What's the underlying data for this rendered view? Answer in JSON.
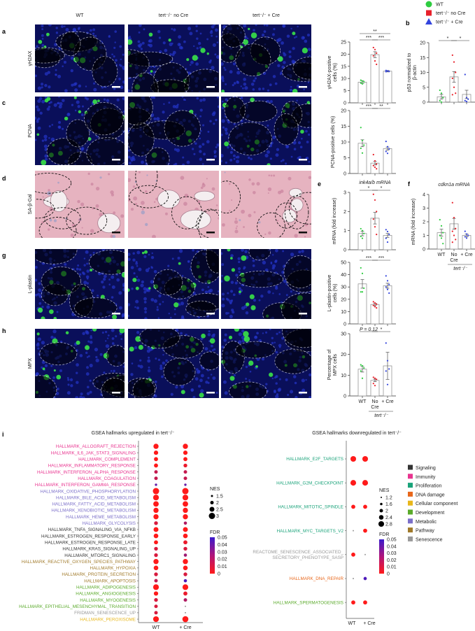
{
  "colors": {
    "WT": "#2ecc40",
    "noCre": "#e8202a",
    "plusCre": "#3344dd",
    "xlabel_plusCre": "#3a8ee0"
  },
  "legend": [
    {
      "label": "WT",
      "shape": "circle",
      "color": "#2ecc40"
    },
    {
      "label": "tert⁻/⁻ no Cre",
      "shape": "square",
      "color": "#e8202a"
    },
    {
      "label": "tert⁻/⁻ + Cre",
      "shape": "triangle",
      "color": "#3344dd"
    }
  ],
  "column_headers": [
    "WT",
    "tert⁻/⁻ no Cre",
    "tert⁻/⁻ + Cre"
  ],
  "micro_rows": [
    {
      "panel": "a",
      "stain": "γH2AX",
      "stain_color": "#2ecc40",
      "type": "fluor"
    },
    {
      "panel": "c",
      "stain": "PCNA",
      "stain_color": "#2ecc40",
      "type": "fluor"
    },
    {
      "panel": "d",
      "stain": "SA-β-Gal",
      "stain_color": "#3a8ee0",
      "type": "histo"
    },
    {
      "panel": "g",
      "stain": "L-plastin",
      "stain_color": "#2ecc40",
      "type": "fluor"
    },
    {
      "panel": "h",
      "stain": "MPX",
      "stain_color": "#2ecc40",
      "type": "fluor"
    }
  ],
  "chart_data": [
    {
      "panel": "a",
      "type": "bar",
      "ylabel": [
        "γH2AX-positive",
        "cells (%)"
      ],
      "ylim": [
        0,
        25
      ],
      "yticks": [
        0,
        5,
        10,
        15,
        20,
        25
      ],
      "categories": [
        "WT",
        "tert⁻/⁻ no Cre",
        "tert⁻/⁻ + Cre"
      ],
      "means": [
        8.5,
        19.8,
        13.0
      ],
      "sem": [
        0.6,
        1.2,
        0.3
      ],
      "points": [
        [
          9.3,
          9.0,
          8.6,
          8.2,
          7.8
        ],
        [
          22.7,
          21.9,
          20.4,
          19.3,
          17.2,
          15.8
        ],
        [
          13.3,
          13.1,
          12.9,
          12.8
        ]
      ],
      "significance": [
        {
          "pair": [
            0,
            2
          ],
          "label": "**",
          "level": 1
        },
        {
          "pair": [
            0,
            1
          ],
          "label": "***",
          "level": 0
        },
        {
          "pair": [
            1,
            2
          ],
          "label": "***",
          "level": 0
        }
      ]
    },
    {
      "panel": "b",
      "type": "bar",
      "ylabel": [
        "p53 normalized to",
        "β-actin"
      ],
      "ylim": [
        0,
        20
      ],
      "yticks": [
        0,
        5,
        10,
        15,
        20
      ],
      "categories": [
        "WT",
        "tert⁻/⁻ no Cre",
        "tert⁻/⁻ + Cre"
      ],
      "means": [
        1.8,
        8.5,
        2.6
      ],
      "sem": [
        0.8,
        1.8,
        1.4
      ],
      "points": [
        [
          4.0,
          3.0,
          1.5,
          0.5,
          0.0
        ],
        [
          15.8,
          13.5,
          10.0,
          8.0,
          5.0,
          3.0,
          2.5
        ],
        [
          9.3,
          1.5,
          1.0,
          0.5,
          0.2
        ]
      ],
      "significance": [
        {
          "pair": [
            0,
            1
          ],
          "label": "*",
          "level": 0
        },
        {
          "pair": [
            1,
            2
          ],
          "label": "*",
          "level": 0
        }
      ]
    },
    {
      "panel": "c",
      "type": "bar",
      "ylabel": [
        "PCNA-positive cells (%)"
      ],
      "ylim": [
        0,
        20
      ],
      "yticks": [
        0,
        5,
        10,
        15,
        20
      ],
      "categories": [
        "WT",
        "tert⁻/⁻ no Cre",
        "tert⁻/⁻ + Cre"
      ],
      "means": [
        9.6,
        3.3,
        7.9
      ],
      "sem": [
        1.1,
        0.6,
        0.5
      ],
      "points": [
        [
          14.6,
          10.5,
          9.0,
          8.0,
          6.5
        ],
        [
          6.0,
          4.0,
          3.0,
          2.5,
          2.0,
          1.5
        ],
        [
          10.2,
          8.5,
          7.8,
          7.0,
          6.4
        ]
      ],
      "significance": [
        {
          "pair": [
            0,
            1
          ],
          "label": "***",
          "level": 0
        },
        {
          "pair": [
            1,
            2
          ],
          "label": "**",
          "level": 0
        }
      ]
    },
    {
      "panel": "e",
      "type": "bar",
      "title": "ink4a/b mRNA",
      "ylabel": [
        "mRNA (fold increase)"
      ],
      "ylim": [
        0,
        3
      ],
      "yticks": [
        0,
        1,
        2,
        3
      ],
      "categories": [
        "WT",
        "tert⁻/⁻ no Cre",
        "tert⁻/⁻ + Cre"
      ],
      "means": [
        0.85,
        1.65,
        0.75
      ],
      "sem": [
        0.12,
        0.3,
        0.1
      ],
      "points": [
        [
          1.1,
          1.0,
          0.85,
          0.7,
          0.6
        ],
        [
          2.9,
          2.6,
          2.0,
          1.6,
          1.2,
          0.8
        ],
        [
          1.05,
          0.95,
          0.8,
          0.6,
          0.4
        ]
      ],
      "significance": [
        {
          "pair": [
            0,
            1
          ],
          "label": "*",
          "level": 0
        },
        {
          "pair": [
            1,
            2
          ],
          "label": "*",
          "level": 0
        }
      ]
    },
    {
      "panel": "f",
      "type": "bar",
      "title": "cdkn1a mRNA",
      "ylabel": [
        "mRNA (fold increase)"
      ],
      "ylim": [
        0,
        4
      ],
      "yticks": [
        0,
        1,
        2,
        3,
        4
      ],
      "categories": [
        "WT",
        "tert⁻/⁻ no Cre",
        "tert⁻/⁻ + Cre"
      ],
      "means": [
        1.2,
        1.85,
        1.0
      ],
      "sem": [
        0.25,
        0.4,
        0.1
      ],
      "points": [
        [
          2.15,
          1.7,
          1.2,
          1.0,
          0.8,
          0.4
        ],
        [
          3.4,
          2.3,
          1.5,
          1.3,
          1.0,
          0.7,
          0.5
        ],
        [
          1.3,
          1.1,
          1.0,
          0.9,
          0.8
        ]
      ],
      "significance": [],
      "xlabels": [
        "WT",
        "No",
        "Cre",
        "+ Cre"
      ],
      "group_label": "tert⁻/⁻"
    },
    {
      "panel": "g",
      "type": "bar",
      "ylabel": [
        "L-plastin-positive",
        "cells (%)"
      ],
      "ylim": [
        0,
        50
      ],
      "yticks": [
        0,
        10,
        20,
        30,
        40,
        50
      ],
      "categories": [
        "WT",
        "tert⁻/⁻ no Cre",
        "tert⁻/⁻ + Cre"
      ],
      "means": [
        32.5,
        15.8,
        31.0
      ],
      "sem": [
        3.5,
        1.0,
        2.0
      ],
      "points": [
        [
          45.5,
          41.0,
          29.0,
          26.0,
          26.0
        ],
        [
          18.0,
          17.0,
          16.0,
          15.0,
          14.0,
          13.0
        ],
        [
          39.0,
          35.0,
          32.0,
          30.0,
          28.0,
          25.0
        ]
      ],
      "significance": [
        {
          "pair": [
            0,
            1
          ],
          "label": "***",
          "level": 0
        },
        {
          "pair": [
            1,
            2
          ],
          "label": "***",
          "level": 0
        }
      ]
    },
    {
      "panel": "h",
      "type": "bar",
      "ylabel": [
        "Percentage of",
        "MPX cells"
      ],
      "ylim": [
        0,
        30
      ],
      "yticks": [
        0,
        10,
        20,
        30
      ],
      "categories": [
        "WT",
        "tert⁻/⁻ no Cre",
        "tert⁻/⁻ + Cre"
      ],
      "means": [
        12.9,
        7.5,
        14.5
      ],
      "sem": [
        1.4,
        0.6,
        6.5
      ],
      "points": [
        [
          15.0,
          14.5,
          13.5,
          12.0,
          8.5
        ],
        [
          9.0,
          8.5,
          8.0,
          6.0,
          5.0
        ],
        [
          25.5,
          17.0,
          13.0,
          12.0,
          5.5
        ]
      ],
      "significance": [
        {
          "pair": [
            0,
            1
          ],
          "label": "P = 0.12",
          "level": 0
        },
        {
          "pair": [
            1,
            2
          ],
          "label": "*",
          "level": 0
        }
      ],
      "xlabels": [
        "WT",
        "No",
        "Cre",
        "+ Cre"
      ],
      "group_label": "tert⁻/⁻"
    },
    {
      "panel": "i-up",
      "type": "scatter",
      "title": "GSEA hallmarks upregulated in tert⁻/⁻",
      "x": [
        "WT",
        "+ Cre"
      ],
      "size_legend": {
        "title": "NES",
        "values": [
          1.5,
          2.0,
          2.5,
          3.0
        ]
      },
      "color_legend": {
        "title": "FDR",
        "ticks": [
          0,
          0.01,
          0.02,
          0.03,
          0.04,
          0.05
        ],
        "range": [
          0,
          0.05
        ],
        "low": "#ff1a1a",
        "high": "#3a1acc"
      },
      "rows": [
        {
          "label": "HALLMARK_ALLOGRAFT_REJECTION",
          "cat": "Immunity",
          "wt": [
            2.6,
            0
          ],
          "cre": [
            2.6,
            0
          ]
        },
        {
          "label": "HALLMARK_IL6_JAK_STAT3_SIGNALING",
          "cat": "Immunity",
          "wt": [
            2.3,
            0
          ],
          "cre": [
            2.3,
            0
          ]
        },
        {
          "label": "HALLMARK_COMPLEMENT",
          "cat": "Immunity",
          "wt": [
            2.2,
            0
          ],
          "cre": [
            2.2,
            0
          ]
        },
        {
          "label": "HALLMARK_INFLAMMATORY_RESPONSE",
          "cat": "Immunity",
          "wt": [
            2.2,
            0
          ],
          "cre": [
            2.1,
            0.005
          ]
        },
        {
          "label": "HALLMARK_INTERFERON_ALPHA_RESPONSE",
          "cat": "Immunity",
          "wt": [
            2.0,
            0.015
          ],
          "cre": [
            2.0,
            0.015
          ]
        },
        {
          "label": "HALLMARK_COAGULATION",
          "cat": "Immunity",
          "wt": [
            2.0,
            0.015
          ],
          "cre": [
            2.0,
            0.015
          ]
        },
        {
          "label": "HALLMARK_INTERFERON_GAMMA_RESPONSE",
          "cat": "Immunity",
          "wt": [
            1.6,
            0.04
          ],
          "cre": [
            1.6,
            0.04
          ]
        },
        {
          "label": "HALLMARK_OXIDATIVE_PHOSPHORYLATION",
          "cat": "Metabolic",
          "wt": [
            3.0,
            0
          ],
          "cre": [
            3.0,
            0
          ]
        },
        {
          "label": "HALLMARK_BILE_ACID_METABOLISM",
          "cat": "Metabolic",
          "wt": [
            2.8,
            0
          ],
          "cre": [
            2.8,
            0
          ]
        },
        {
          "label": "HALLMARK_FATTY_ACID_METABOLISM",
          "cat": "Metabolic",
          "wt": [
            2.7,
            0
          ],
          "cre": [
            2.7,
            0
          ]
        },
        {
          "label": "HALLMARK_XENOBIOTIC_METABOLISM",
          "cat": "Metabolic",
          "wt": [
            2.6,
            0
          ],
          "cre": [
            2.6,
            0
          ]
        },
        {
          "label": "HALLMARK_HEME_METABOLISM",
          "cat": "Metabolic",
          "wt": [
            2.6,
            0
          ],
          "cre": [
            2.6,
            0
          ]
        },
        {
          "label": "HALLMARK_GLYCOLYSIS",
          "cat": "Metabolic",
          "wt": [
            2.1,
            0.01
          ],
          "cre": [
            1.9,
            0.02
          ]
        },
        {
          "label": "HALLMARK_TNFA_SIGNALING_VIA_NFKB",
          "cat": "Signaling",
          "wt": [
            2.5,
            0
          ],
          "cre": [
            2.5,
            0
          ]
        },
        {
          "label": "HALLMARK_ESTROGEN_RESPONSE_EARLY",
          "cat": "Signaling",
          "wt": [
            2.4,
            0
          ],
          "cre": [
            2.4,
            0
          ]
        },
        {
          "label": "HALLMARK_ESTROGEN_RESPONSE_LATE",
          "cat": "Signaling",
          "wt": [
            2.2,
            0
          ],
          "cre": [
            2.2,
            0.005
          ]
        },
        {
          "label": "HALLMARK_KRAS_SIGNALING_UP",
          "cat": "Signaling",
          "wt": [
            2.1,
            0.01
          ],
          "cre": [
            2.1,
            0.01
          ]
        },
        {
          "label": "HALLMARK_MTORC1_SIGNALING",
          "cat": "Signaling",
          "wt": [
            2.1,
            0.01
          ],
          "cre": [
            1.9,
            0.025
          ]
        },
        {
          "label": "HALLMARK_REACTIVE_OXYGEN_SPECIES_PATHWAY",
          "cat": "Pathway",
          "wt": [
            2.6,
            0
          ],
          "cre": [
            2.6,
            0
          ]
        },
        {
          "label": "HALLMARK_HYPOXIA",
          "cat": "Pathway",
          "wt": [
            2.4,
            0
          ],
          "cre": [
            2.4,
            0
          ]
        },
        {
          "label": "HALLMARK_PROTEIN_SECRETION",
          "cat": "Pathway",
          "wt": [
            2.1,
            0.01
          ],
          "cre": [
            2.1,
            0.01
          ]
        },
        {
          "label": "HALLMARK_APOPTOSIS",
          "cat": "Pathway",
          "wt": [
            2.0,
            0.015
          ],
          "cre": [
            1.9,
            0.045
          ]
        },
        {
          "label": "HALLMARK_ADIPOGENESIS",
          "cat": "Development",
          "wt": [
            2.8,
            0
          ],
          "cre": [
            2.8,
            0
          ]
        },
        {
          "label": "HALLMARK_ANGIOGENESIS",
          "cat": "Development",
          "wt": [
            2.3,
            0
          ],
          "cre": [
            2.2,
            0.005
          ]
        },
        {
          "label": "HALLMARK_MYOGENESIS",
          "cat": "Development",
          "wt": [
            2.1,
            0.01
          ],
          "cre": [
            2.0,
            0.02
          ]
        },
        {
          "label": "HALLMARK_EPITHELIAL_MESENCHYMAL_TRANSITION",
          "cat": "Development",
          "wt": [
            2.0,
            0.01
          ],
          "cre": null
        },
        {
          "label": "FRIDMAN_SENESCENCE_UP",
          "cat": "Senescence",
          "wt": [
            2.0,
            0.01
          ],
          "cre": null
        },
        {
          "label": "HALLMARK_PEROXISOME",
          "cat": "Cellular component",
          "wt": [
            2.8,
            0
          ],
          "cre": [
            2.9,
            0
          ]
        }
      ]
    },
    {
      "panel": "i-down",
      "type": "scatter",
      "title": "GSEA hallmarks downregulated in tert⁻/⁻",
      "x": [
        "WT",
        "+ Cre"
      ],
      "size_legend": {
        "title": "NES",
        "values": [
          1.2,
          1.6,
          2.0,
          2.4,
          2.8
        ]
      },
      "color_legend": {
        "title": "FDR",
        "ticks": [
          0,
          0.01,
          0.02,
          0.03,
          0.04,
          0.05
        ],
        "range": [
          0,
          0.05
        ],
        "low": "#ff1a1a",
        "high": "#3a1acc"
      },
      "rows": [
        {
          "label": "HALLMARK_E2F_TARGETS",
          "cat": "Proliferation",
          "wt": [
            2.8,
            0
          ],
          "cre": [
            2.8,
            0
          ]
        },
        {
          "label": "HALLMARK_G2M_CHECKPOINT",
          "cat": "Proliferation",
          "wt": [
            2.8,
            0
          ],
          "cre": [
            2.8,
            0
          ]
        },
        {
          "label": "HALLMARK_MITOTIC_SPINDLE",
          "cat": "Proliferation",
          "wt": [
            2.2,
            0
          ],
          "cre": [
            2.2,
            0
          ]
        },
        {
          "label": "HALLMARK_MYC_TARGETS_V2",
          "cat": "Proliferation",
          "wt": null,
          "cre": [
            2.2,
            0
          ]
        },
        {
          "label": "REACTOME_SENESCENCE_ASSOCIATED_ SECRETORY_PHENOTYPE_SASP",
          "cat": "Senescence",
          "wt": [
            2.2,
            0
          ],
          "cre": null
        },
        {
          "label": "HALLMARK_DNA_REPAIR",
          "cat": "DNA damage",
          "wt": null,
          "cre": [
            1.9,
            0.045
          ]
        },
        {
          "label": "HALLMARK_SPERMATOGENESIS",
          "cat": "Development",
          "wt": [
            2.2,
            0
          ],
          "cre": [
            2.2,
            0
          ]
        }
      ]
    }
  ],
  "categories_legend": [
    {
      "label": "Signaling",
      "color": "#333333"
    },
    {
      "label": "Immunity",
      "color": "#e8338f"
    },
    {
      "label": "Proliferation",
      "color": "#1aa37a"
    },
    {
      "label": "DNA damage",
      "color": "#e8671b"
    },
    {
      "label": "Cellular component",
      "color": "#e8b71b"
    },
    {
      "label": "Development",
      "color": "#5aaa2a"
    },
    {
      "label": "Metabolic",
      "color": "#7b6fc9"
    },
    {
      "label": "Pathway",
      "color": "#a07a2a"
    },
    {
      "label": "Senescence",
      "color": "#999999"
    }
  ],
  "panel_labels": [
    "a",
    "b",
    "c",
    "d",
    "e",
    "f",
    "g",
    "h",
    "i"
  ]
}
